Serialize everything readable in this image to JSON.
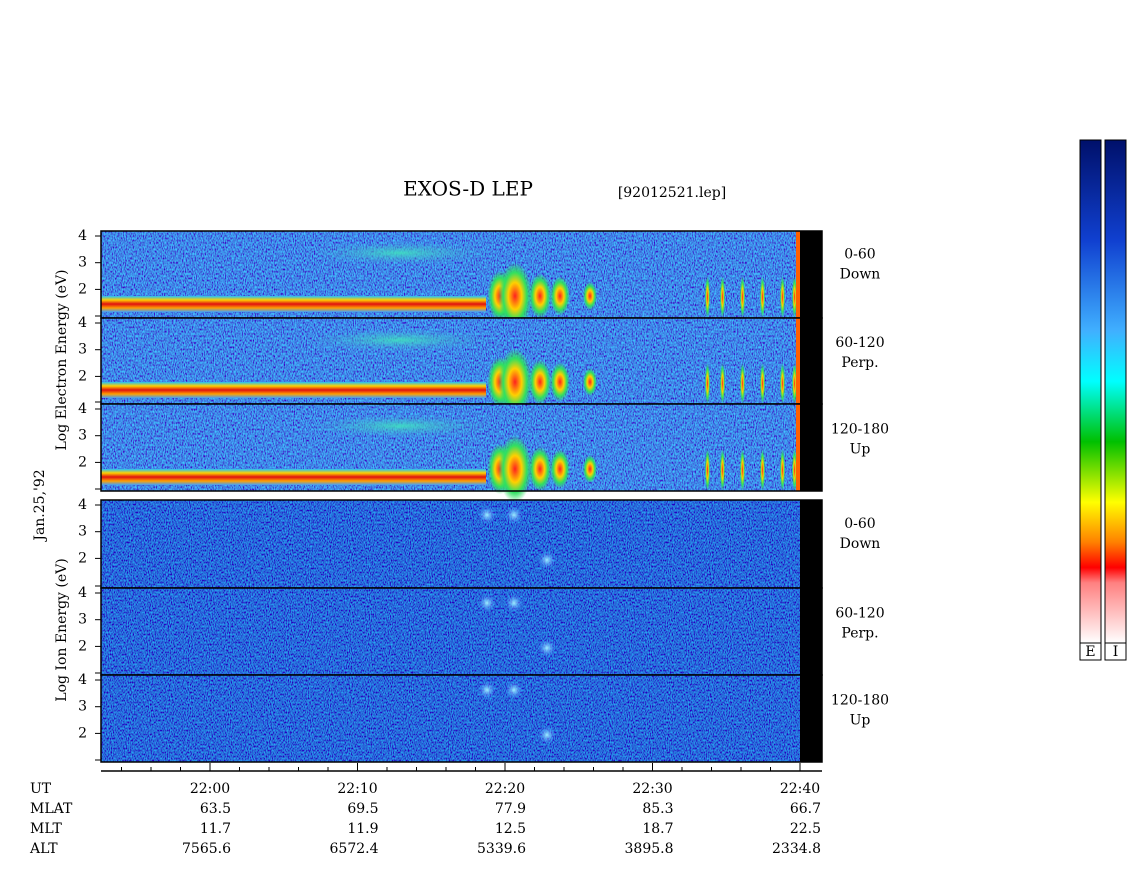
{
  "title": "EXOS-D LEP",
  "file": "[92012521.lep]",
  "date": "Jan.25,'92",
  "electron_axis_label": "Log  Electron  Energy (eV)",
  "ion_axis_label": "Log  Ion  Energy (eV)",
  "yticks": [
    2,
    3,
    4
  ],
  "panels": [
    {
      "range": "0-60",
      "direction": "Down"
    },
    {
      "range": "60-120",
      "direction": "Perp."
    },
    {
      "range": "120-180",
      "direction": "Up"
    }
  ],
  "colorbar_labels": [
    "E",
    "I"
  ],
  "ephemeris": {
    "labels": [
      "UT",
      "MLAT",
      "MLT",
      "ALT"
    ],
    "UT": [
      "22:00",
      "22:10",
      "22:20",
      "22:30",
      "22:40"
    ],
    "MLAT": [
      63.5,
      69.5,
      77.9,
      85.3,
      66.7
    ],
    "MLT": [
      11.7,
      11.9,
      12.5,
      18.7,
      22.5
    ],
    "ALT": [
      7565.6,
      6572.4,
      5339.6,
      3895.8,
      2334.8
    ]
  }
}
